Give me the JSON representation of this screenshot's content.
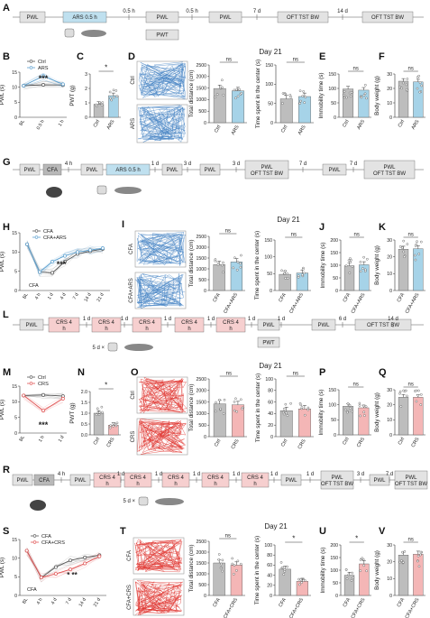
{
  "panel_letters": [
    "A",
    "B",
    "C",
    "D",
    "E",
    "F",
    "G",
    "H",
    "I",
    "J",
    "K",
    "L",
    "M",
    "N",
    "O",
    "P",
    "Q",
    "R",
    "S",
    "T",
    "U",
    "V"
  ],
  "rows": {
    "A": {
      "boxes": [
        "PWL",
        "ARS 0.5 h",
        "PWL",
        "PWL",
        "OFT TST BW",
        "OFT TST BW"
      ],
      "sub_box": "PWT",
      "gaps": [
        "0.5 h",
        "0.5 h",
        "7 d",
        "14 d"
      ]
    },
    "G": {
      "boxes": [
        "PWL",
        "CFA",
        "PWL",
        "ARS 0.5 h",
        "PWL",
        "PWL",
        "PWL OFT TST BW",
        "PWL",
        "PWL OFT TST BW"
      ],
      "gaps": [
        "4 h",
        "1 d",
        "3 d",
        "3 d",
        "7 d",
        "7 d"
      ]
    },
    "L": {
      "boxes": [
        "PWL",
        "CRS 4 h",
        "CRS 4 h",
        "CRS 4 h",
        "CRS 4 h",
        "CRS 4 h",
        "PWL",
        "PWL",
        "OFT TST BW"
      ],
      "sub_box": "PWT",
      "gaps": [
        "1 d",
        "1 d",
        "1 d",
        "1 d",
        "1 d",
        "1 d",
        "6 d",
        "14 d"
      ],
      "note": "5 d ×"
    },
    "R": {
      "boxes": [
        "PWL",
        "CFA",
        "PWL",
        "CRS 4 h",
        "CRS 4 h",
        "CRS 4 h",
        "CRS 4 h",
        "CRS 4 h",
        "PWL",
        "PWL OFT TST BW",
        "PWL",
        "PWL OFT TST BW"
      ],
      "gaps": [
        "4 h",
        "1 d",
        "1 d",
        "1 d",
        "1 d",
        "1 d",
        "1 d",
        "3 d",
        "7 d",
        "7 d"
      ],
      "note": "5 d ×"
    }
  },
  "day_labels": {
    "first": "Day 21",
    "second": "Day 21",
    "third": "Day 21",
    "fourth": "Day 21"
  },
  "track_labels": {
    "D": [
      "Ctrl",
      "ARS"
    ],
    "I": [
      "CFA",
      "CFA+ARS"
    ],
    "O": [
      "Ctrl",
      "CRS"
    ],
    "T": [
      "CFA",
      "CFA+CRS"
    ]
  },
  "colors": {
    "ctrl": "#bdbdbd",
    "ars": "#a6d3e8",
    "ars_line": "#5a9fcf",
    "crs": "#f4b6b6",
    "crs_line": "#e05252",
    "track_blue": "#4a86c5",
    "track_red": "#e0342f"
  },
  "chart_data": [
    {
      "panel": "B",
      "type": "line",
      "ylabel": "PWL (s)",
      "ylim": [
        0,
        15
      ],
      "yticks": [
        "0",
        "5",
        "10",
        "15"
      ],
      "categories": [
        "BL",
        "0.5 h",
        "1 h"
      ],
      "legend": [
        "Ctrl",
        "ARS"
      ],
      "series": [
        {
          "name": "Ctrl",
          "values": [
            10.5,
            10.8,
            10.7
          ]
        },
        {
          "name": "ARS",
          "values": [
            10.5,
            13.7,
            11.0
          ]
        }
      ],
      "annotation": "***"
    },
    {
      "panel": "C",
      "type": "bar",
      "ylabel": "PWT (g)",
      "ylim": [
        0,
        3
      ],
      "yticks": [
        "0",
        "1",
        "2",
        "3"
      ],
      "categories": [
        "Ctrl",
        "ARS"
      ],
      "values": [
        0.9,
        1.5
      ],
      "annotation": "*"
    },
    {
      "panel": "D2",
      "type": "bar",
      "ylabel": "Total distance (cm)",
      "ylim": [
        0,
        2500
      ],
      "yticks": [
        "0",
        "500",
        "1000",
        "1500",
        "2000",
        "2500"
      ],
      "categories": [
        "Ctrl",
        "ARS"
      ],
      "values": [
        1480,
        1380
      ],
      "annotation": "ns"
    },
    {
      "panel": "D3",
      "type": "bar",
      "ylabel": "Time spent in the center (s)",
      "ylim": [
        0,
        150
      ],
      "yticks": [
        "0",
        "50",
        "100",
        "150"
      ],
      "categories": [
        "Ctrl",
        "ARS"
      ],
      "values": [
        62,
        68
      ],
      "annotation": "ns"
    },
    {
      "panel": "E",
      "type": "bar",
      "ylabel": "Immobility time (s)",
      "ylim": [
        0,
        150
      ],
      "yticks": [
        "0",
        "50",
        "100",
        "150"
      ],
      "categories": [
        "Ctrl",
        "ARS"
      ],
      "values": [
        98,
        94
      ],
      "annotation": "ns"
    },
    {
      "panel": "F",
      "type": "bar",
      "ylabel": "Body weight (g)",
      "ylim": [
        0,
        30
      ],
      "yticks": [
        "0",
        "10",
        "20",
        "30"
      ],
      "categories": [
        "Ctrl",
        "ARS"
      ],
      "values": [
        25,
        24.5
      ],
      "annotation": "ns"
    },
    {
      "panel": "H",
      "type": "line",
      "ylabel": "PWL (s)",
      "ylim": [
        0,
        15
      ],
      "yticks": [
        "0",
        "5",
        "10",
        "15"
      ],
      "categories": [
        "BL",
        "4 h",
        "1 d",
        "4 d",
        "7 d",
        "14 d",
        "21 d"
      ],
      "legend": [
        "CFA",
        "CFA+ARS"
      ],
      "series": [
        {
          "name": "CFA",
          "values": [
            12,
            4.8,
            4.6,
            7.5,
            9.5,
            10.2,
            10.8
          ]
        },
        {
          "name": "CFA+ARS",
          "values": [
            12,
            4.8,
            7.5,
            9.0,
            10.0,
            10.5,
            11.0
          ]
        }
      ],
      "annotation": "***",
      "marker": "CFA"
    },
    {
      "panel": "I2",
      "type": "bar",
      "ylabel": "Total distance (cm)",
      "ylim": [
        0,
        2500
      ],
      "yticks": [
        "0",
        "500",
        "1000",
        "1500",
        "2000",
        "2500"
      ],
      "categories": [
        "CFA",
        "CFA+ARS"
      ],
      "values": [
        1200,
        1320
      ],
      "annotation": "ns"
    },
    {
      "panel": "I3",
      "type": "bar",
      "ylabel": "Time spent in the center (s)",
      "ylim": [
        0,
        150
      ],
      "yticks": [
        "0",
        "50",
        "100",
        "150"
      ],
      "categories": [
        "CFA",
        "CFA+ARS"
      ],
      "values": [
        48,
        52
      ],
      "annotation": "ns"
    },
    {
      "panel": "J",
      "type": "bar",
      "ylabel": "Immobility time (s)",
      "ylim": [
        0,
        200
      ],
      "yticks": [
        "0",
        "50",
        "100",
        "150",
        "200"
      ],
      "categories": [
        "CFA",
        "CFA+ARS"
      ],
      "values": [
        98,
        102
      ],
      "annotation": "ns"
    },
    {
      "panel": "K",
      "type": "bar",
      "ylabel": "Body weight (g)",
      "ylim": [
        0,
        30
      ],
      "yticks": [
        "0",
        "10",
        "20",
        "30"
      ],
      "categories": [
        "CFA",
        "CFA+ARS"
      ],
      "values": [
        24.5,
        24.8
      ],
      "annotation": "ns"
    },
    {
      "panel": "M",
      "type": "line",
      "ylabel": "PWL (s)",
      "ylim": [
        0,
        15
      ],
      "yticks": [
        "0",
        "5",
        "10",
        "15"
      ],
      "categories": [
        "BL",
        "1 h",
        "1 d"
      ],
      "legend": [
        "Ctrl",
        "CRS"
      ],
      "series": [
        {
          "name": "Ctrl",
          "values": [
            12,
            12.2,
            11.8
          ]
        },
        {
          "name": "CRS",
          "values": [
            12,
            7.2,
            11.0
          ]
        }
      ],
      "annotation": "***"
    },
    {
      "panel": "N",
      "type": "bar",
      "ylabel": "PWT (g)",
      "ylim": [
        0,
        2.0
      ],
      "yticks": [
        "0.0",
        "0.5",
        "1.0",
        "1.5",
        "2.0"
      ],
      "categories": [
        "Ctrl",
        "CRS"
      ],
      "values": [
        1.0,
        0.45
      ],
      "annotation": "*"
    },
    {
      "panel": "O2",
      "type": "bar",
      "ylabel": "Total distance (cm)",
      "ylim": [
        0,
        2500
      ],
      "yticks": [
        "0",
        "500",
        "1000",
        "1500",
        "2000",
        "2500"
      ],
      "categories": [
        "Ctrl",
        "CRS"
      ],
      "values": [
        1420,
        1380
      ],
      "annotation": "ns"
    },
    {
      "panel": "O3",
      "type": "bar",
      "ylabel": "Time spent in the center (s)",
      "ylim": [
        0,
        100
      ],
      "yticks": [
        "0",
        "20",
        "40",
        "60",
        "80",
        "100"
      ],
      "categories": [
        "Ctrl",
        "CRS"
      ],
      "values": [
        45,
        48
      ],
      "annotation": "ns"
    },
    {
      "panel": "P",
      "type": "bar",
      "ylabel": "Immobility time (s)",
      "ylim": [
        0,
        150
      ],
      "yticks": [
        "0",
        "50",
        "100",
        "150"
      ],
      "categories": [
        "Ctrl",
        "CRS"
      ],
      "values": [
        95,
        90
      ],
      "annotation": "ns"
    },
    {
      "panel": "Q",
      "type": "bar",
      "ylabel": "Body weight (g)",
      "ylim": [
        0,
        30
      ],
      "yticks": [
        "0",
        "10",
        "20",
        "30"
      ],
      "categories": [
        "Ctrl",
        "CRS"
      ],
      "values": [
        25,
        25
      ],
      "annotation": "ns"
    },
    {
      "panel": "S",
      "type": "line",
      "ylabel": "PWL (s)",
      "ylim": [
        0,
        15
      ],
      "yticks": [
        "0",
        "5",
        "10",
        "15"
      ],
      "categories": [
        "BL",
        "4 h",
        "4 d",
        "7 d",
        "14 d",
        "21 d"
      ],
      "legend": [
        "CFA",
        "CFA+CRS"
      ],
      "series": [
        {
          "name": "CFA",
          "values": [
            12,
            4.8,
            7.6,
            9.4,
            10.2,
            10.8
          ]
        },
        {
          "name": "CFA+CRS",
          "values": [
            12,
            4.8,
            5.8,
            7.0,
            8.6,
            10.5
          ]
        }
      ],
      "annotation": "* **",
      "marker": "CFA"
    },
    {
      "panel": "T2",
      "type": "bar",
      "ylabel": "Total distance (cm)",
      "ylim": [
        0,
        2500
      ],
      "yticks": [
        "0",
        "500",
        "1000",
        "1500",
        "2000",
        "2500"
      ],
      "categories": [
        "CFA",
        "CFA+CRS"
      ],
      "values": [
        1500,
        1400
      ],
      "annotation": "ns"
    },
    {
      "panel": "T3",
      "type": "bar",
      "ylabel": "Time spent in the center (s)",
      "ylim": [
        0,
        100
      ],
      "yticks": [
        "0",
        "20",
        "40",
        "60",
        "80",
        "100"
      ],
      "categories": [
        "CFA",
        "CFA+CRS"
      ],
      "values": [
        52,
        28
      ],
      "annotation": "*"
    },
    {
      "panel": "U",
      "type": "bar",
      "ylabel": "Immobility time (s)",
      "ylim": [
        0,
        200
      ],
      "yticks": [
        "0",
        "50",
        "100",
        "150",
        "200"
      ],
      "categories": [
        "CFA",
        "CFA+CRS"
      ],
      "values": [
        80,
        125
      ],
      "annotation": "*"
    },
    {
      "panel": "V",
      "type": "bar",
      "ylabel": "Body weight (g)",
      "ylim": [
        0,
        30
      ],
      "yticks": [
        "0",
        "10",
        "20",
        "30"
      ],
      "categories": [
        "CFA",
        "CFA+CRS"
      ],
      "values": [
        24,
        24.5
      ],
      "annotation": "ns"
    }
  ]
}
